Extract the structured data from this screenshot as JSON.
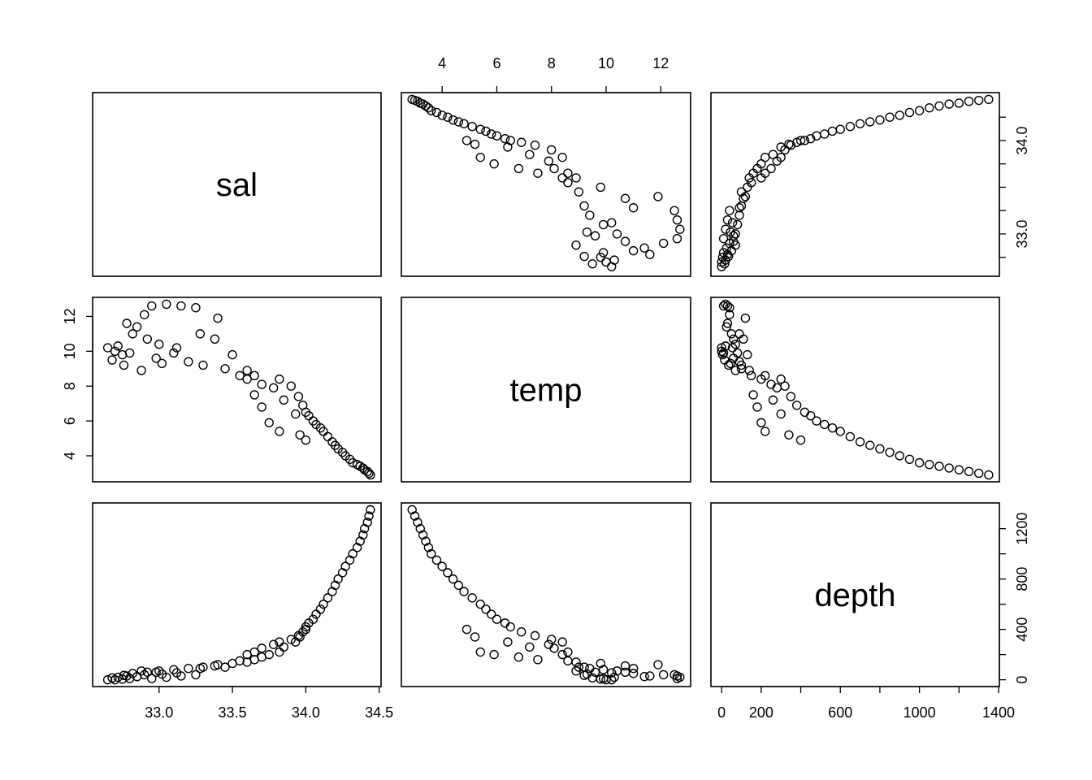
{
  "chart_data": {
    "type": "scatter",
    "variables": [
      "sal",
      "temp",
      "depth"
    ],
    "ranges": {
      "sal": [
        32.62,
        34.44
      ],
      "temp": [
        2.9,
        12.7
      ],
      "depth": [
        0,
        1350
      ]
    },
    "ticks": {
      "sal": [
        33.0,
        33.5,
        34.0,
        34.5
      ],
      "temp": [
        4,
        6,
        8,
        10,
        12
      ],
      "depth": [
        0,
        200,
        400,
        600,
        800,
        1000,
        1200,
        1400
      ]
    },
    "tick_labels": {
      "sal_bottom": [
        "33.0",
        "33.5",
        "34.0",
        "34.5"
      ],
      "temp_top": [
        "4",
        "6",
        "8",
        "10",
        "12"
      ],
      "sal_right": [
        "33.0",
        "34.0"
      ],
      "temp_left": [
        "4",
        "6",
        "8",
        "10",
        "12"
      ],
      "depth_bottom": [
        "0",
        "200",
        "600",
        "1000",
        "1400"
      ],
      "depth_right": [
        "0",
        "400",
        "800",
        "1200"
      ]
    },
    "observations": {
      "columns": [
        "depth",
        "sal",
        "temp"
      ],
      "rows": [
        [
          0,
          32.65,
          10.2
        ],
        [
          0,
          32.7,
          10.0
        ],
        [
          5,
          32.75,
          9.8
        ],
        [
          10,
          32.8,
          9.9
        ],
        [
          20,
          32.72,
          10.3
        ],
        [
          25,
          32.85,
          11.4
        ],
        [
          30,
          32.78,
          11.6
        ],
        [
          40,
          32.9,
          12.1
        ],
        [
          10,
          32.95,
          12.6
        ],
        [
          20,
          33.05,
          12.7
        ],
        [
          30,
          33.15,
          12.6
        ],
        [
          40,
          33.25,
          12.5
        ],
        [
          50,
          32.82,
          11.0
        ],
        [
          60,
          32.92,
          10.7
        ],
        [
          70,
          33.0,
          10.4
        ],
        [
          80,
          33.1,
          9.9
        ],
        [
          90,
          33.2,
          9.4
        ],
        [
          100,
          33.3,
          9.2
        ],
        [
          100,
          33.45,
          9.0
        ],
        [
          120,
          33.4,
          11.9
        ],
        [
          90,
          33.28,
          11.0
        ],
        [
          60,
          32.98,
          9.6
        ],
        [
          140,
          33.6,
          8.9
        ],
        [
          150,
          33.55,
          8.6
        ],
        [
          200,
          33.6,
          8.4
        ],
        [
          220,
          33.65,
          8.6
        ],
        [
          250,
          33.7,
          8.1
        ],
        [
          280,
          33.78,
          7.9
        ],
        [
          300,
          33.82,
          8.4
        ],
        [
          320,
          33.9,
          8.0
        ],
        [
          350,
          33.95,
          7.4
        ],
        [
          380,
          33.98,
          6.9
        ],
        [
          420,
          34.0,
          6.5
        ],
        [
          450,
          34.02,
          6.3
        ],
        [
          480,
          34.05,
          6.0
        ],
        [
          520,
          34.07,
          5.8
        ],
        [
          560,
          34.1,
          5.6
        ],
        [
          600,
          34.12,
          5.4
        ],
        [
          650,
          34.15,
          5.1
        ],
        [
          700,
          34.18,
          4.8
        ],
        [
          750,
          34.2,
          4.6
        ],
        [
          800,
          34.22,
          4.4
        ],
        [
          850,
          34.25,
          4.2
        ],
        [
          900,
          34.27,
          4.0
        ],
        [
          950,
          34.3,
          3.8
        ],
        [
          1000,
          34.32,
          3.6
        ],
        [
          1050,
          34.35,
          3.5
        ],
        [
          1100,
          34.37,
          3.4
        ],
        [
          1150,
          34.39,
          3.3
        ],
        [
          1200,
          34.4,
          3.2
        ],
        [
          1250,
          34.42,
          3.1
        ],
        [
          1300,
          34.43,
          3.0
        ],
        [
          1350,
          34.44,
          2.9
        ],
        [
          200,
          33.75,
          5.9
        ],
        [
          220,
          33.82,
          5.4
        ],
        [
          180,
          33.7,
          6.8
        ],
        [
          160,
          33.65,
          7.5
        ],
        [
          260,
          33.85,
          7.2
        ],
        [
          300,
          33.93,
          6.4
        ],
        [
          340,
          33.96,
          5.2
        ],
        [
          400,
          34.0,
          4.9
        ],
        [
          110,
          33.38,
          10.7
        ],
        [
          130,
          33.5,
          9.8
        ],
        [
          70,
          32.88,
          8.9
        ],
        [
          15,
          32.68,
          9.5
        ],
        [
          35,
          32.76,
          9.2
        ],
        [
          45,
          33.02,
          9.3
        ],
        [
          55,
          33.12,
          10.2
        ]
      ]
    }
  }
}
